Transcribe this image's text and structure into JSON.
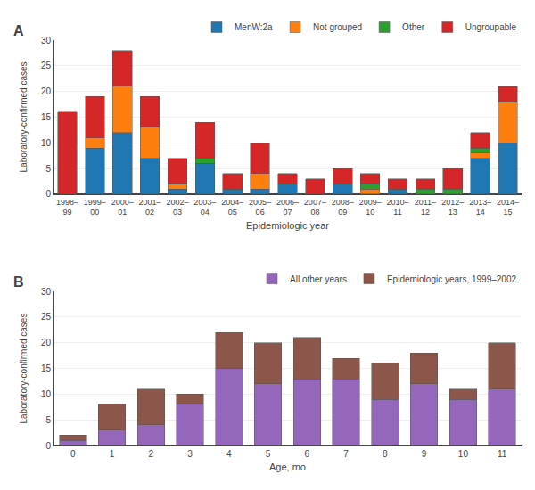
{
  "chart_data": [
    {
      "type": "bar",
      "stacked": true,
      "title": "A",
      "xlabel": "Epidemiologic year",
      "ylabel": "Laboratory-confirmed cases",
      "categories": [
        "1998–\n99",
        "1999–\n00",
        "2000–\n01",
        "2001–\n02",
        "2002–\n03",
        "2003–\n04",
        "2004–\n05",
        "2005–\n06",
        "2006–\n07",
        "2007–\n08",
        "2008–\n09",
        "2009–\n10",
        "2010–\n11",
        "2011–\n12",
        "2012–\n13",
        "2013–\n14",
        "2014–\n15"
      ],
      "series": [
        {
          "name": "MenW:2a",
          "values": [
            0,
            9,
            12,
            7,
            1,
            6,
            1,
            1,
            2,
            0,
            2,
            0,
            1,
            0,
            0,
            7,
            10
          ]
        },
        {
          "name": "Not grouped",
          "values": [
            0,
            2,
            9,
            6,
            1,
            0,
            0,
            3,
            0,
            0,
            0,
            1,
            0,
            0,
            0,
            1,
            8
          ]
        },
        {
          "name": "Other",
          "values": [
            0,
            0,
            0,
            0,
            0,
            1,
            0,
            0,
            0,
            0,
            0,
            1,
            0,
            1,
            1,
            1,
            0
          ]
        },
        {
          "name": "Ungroupable",
          "values": [
            16,
            8,
            7,
            6,
            5,
            7,
            3,
            6,
            2,
            3,
            3,
            2,
            2,
            2,
            4,
            3,
            3
          ]
        }
      ],
      "ylim": [
        0,
        30
      ],
      "yticks": [
        0,
        5,
        10,
        15,
        20,
        25,
        30
      ]
    },
    {
      "type": "bar",
      "stacked": true,
      "title": "B",
      "xlabel": "Age, mo",
      "ylabel": "Laboratory-confirmed cases",
      "categories": [
        "0",
        "1",
        "2",
        "3",
        "4",
        "5",
        "6",
        "7",
        "8",
        "9",
        "10",
        "11"
      ],
      "series": [
        {
          "name": "All other years",
          "values": [
            1,
            3,
            4,
            8,
            15,
            12,
            13,
            13,
            9,
            12,
            9,
            11
          ]
        },
        {
          "name": "Epidemiologic years, 1999–2002",
          "values": [
            1,
            5,
            7,
            2,
            7,
            8,
            8,
            4,
            7,
            6,
            2,
            9
          ]
        }
      ],
      "ylim": [
        0,
        30
      ],
      "yticks": [
        0,
        5,
        10,
        15,
        20,
        25,
        30
      ]
    }
  ]
}
